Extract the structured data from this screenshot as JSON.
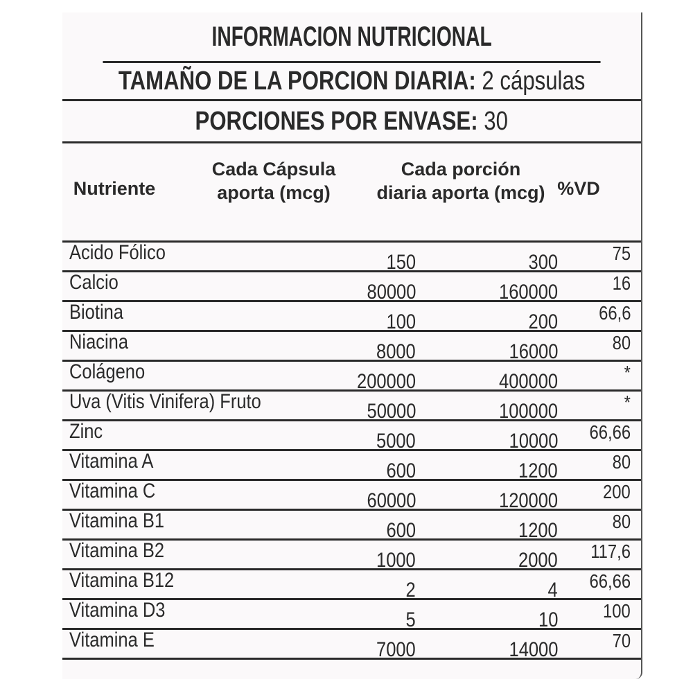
{
  "title": "INFORMACION NUTRICIONAL",
  "serving_size": {
    "label": "TAMAÑO DE LA PORCION DIARIA:",
    "value": "2 cápsulas"
  },
  "servings_per_container": {
    "label": "PORCIONES POR ENVASE:",
    "value": "30"
  },
  "columns": [
    "Nutriente",
    "Cada Cápsula aporta (mcg)",
    "Cada porción diaria aporta (mcg)",
    "%VD"
  ],
  "rows": [
    {
      "nutrient": "Acido Fólico",
      "per_capsule": "150",
      "per_serving": "300",
      "vd": "75"
    },
    {
      "nutrient": "Calcio",
      "per_capsule": "80000",
      "per_serving": "160000",
      "vd": "16"
    },
    {
      "nutrient": "Biotina",
      "per_capsule": "100",
      "per_serving": "200",
      "vd": "66,6"
    },
    {
      "nutrient": "Niacina",
      "per_capsule": "8000",
      "per_serving": "16000",
      "vd": "80"
    },
    {
      "nutrient": "Colágeno",
      "per_capsule": "200000",
      "per_serving": "400000",
      "vd": "*"
    },
    {
      "nutrient": "Uva (Vitis Vinifera) Fruto",
      "per_capsule": "50000",
      "per_serving": "100000",
      "vd": "*"
    },
    {
      "nutrient": "Zinc",
      "per_capsule": "5000",
      "per_serving": "10000",
      "vd": "66,66"
    },
    {
      "nutrient": "Vitamina A",
      "per_capsule": "600",
      "per_serving": "1200",
      "vd": "80"
    },
    {
      "nutrient": "Vitamina C",
      "per_capsule": "60000",
      "per_serving": "120000",
      "vd": "200"
    },
    {
      "nutrient": "Vitamina B1",
      "per_capsule": "600",
      "per_serving": "1200",
      "vd": "80"
    },
    {
      "nutrient": "Vitamina B2",
      "per_capsule": "1000",
      "per_serving": "2000",
      "vd": "117,6"
    },
    {
      "nutrient": "Vitamina B12",
      "per_capsule": "2",
      "per_serving": "4",
      "vd": "66,66"
    },
    {
      "nutrient": "Vitamina D3",
      "per_capsule": "5",
      "per_serving": "10",
      "vd": "100"
    },
    {
      "nutrient": "Vitamina E",
      "per_capsule": "7000",
      "per_serving": "14000",
      "vd": "70"
    }
  ]
}
